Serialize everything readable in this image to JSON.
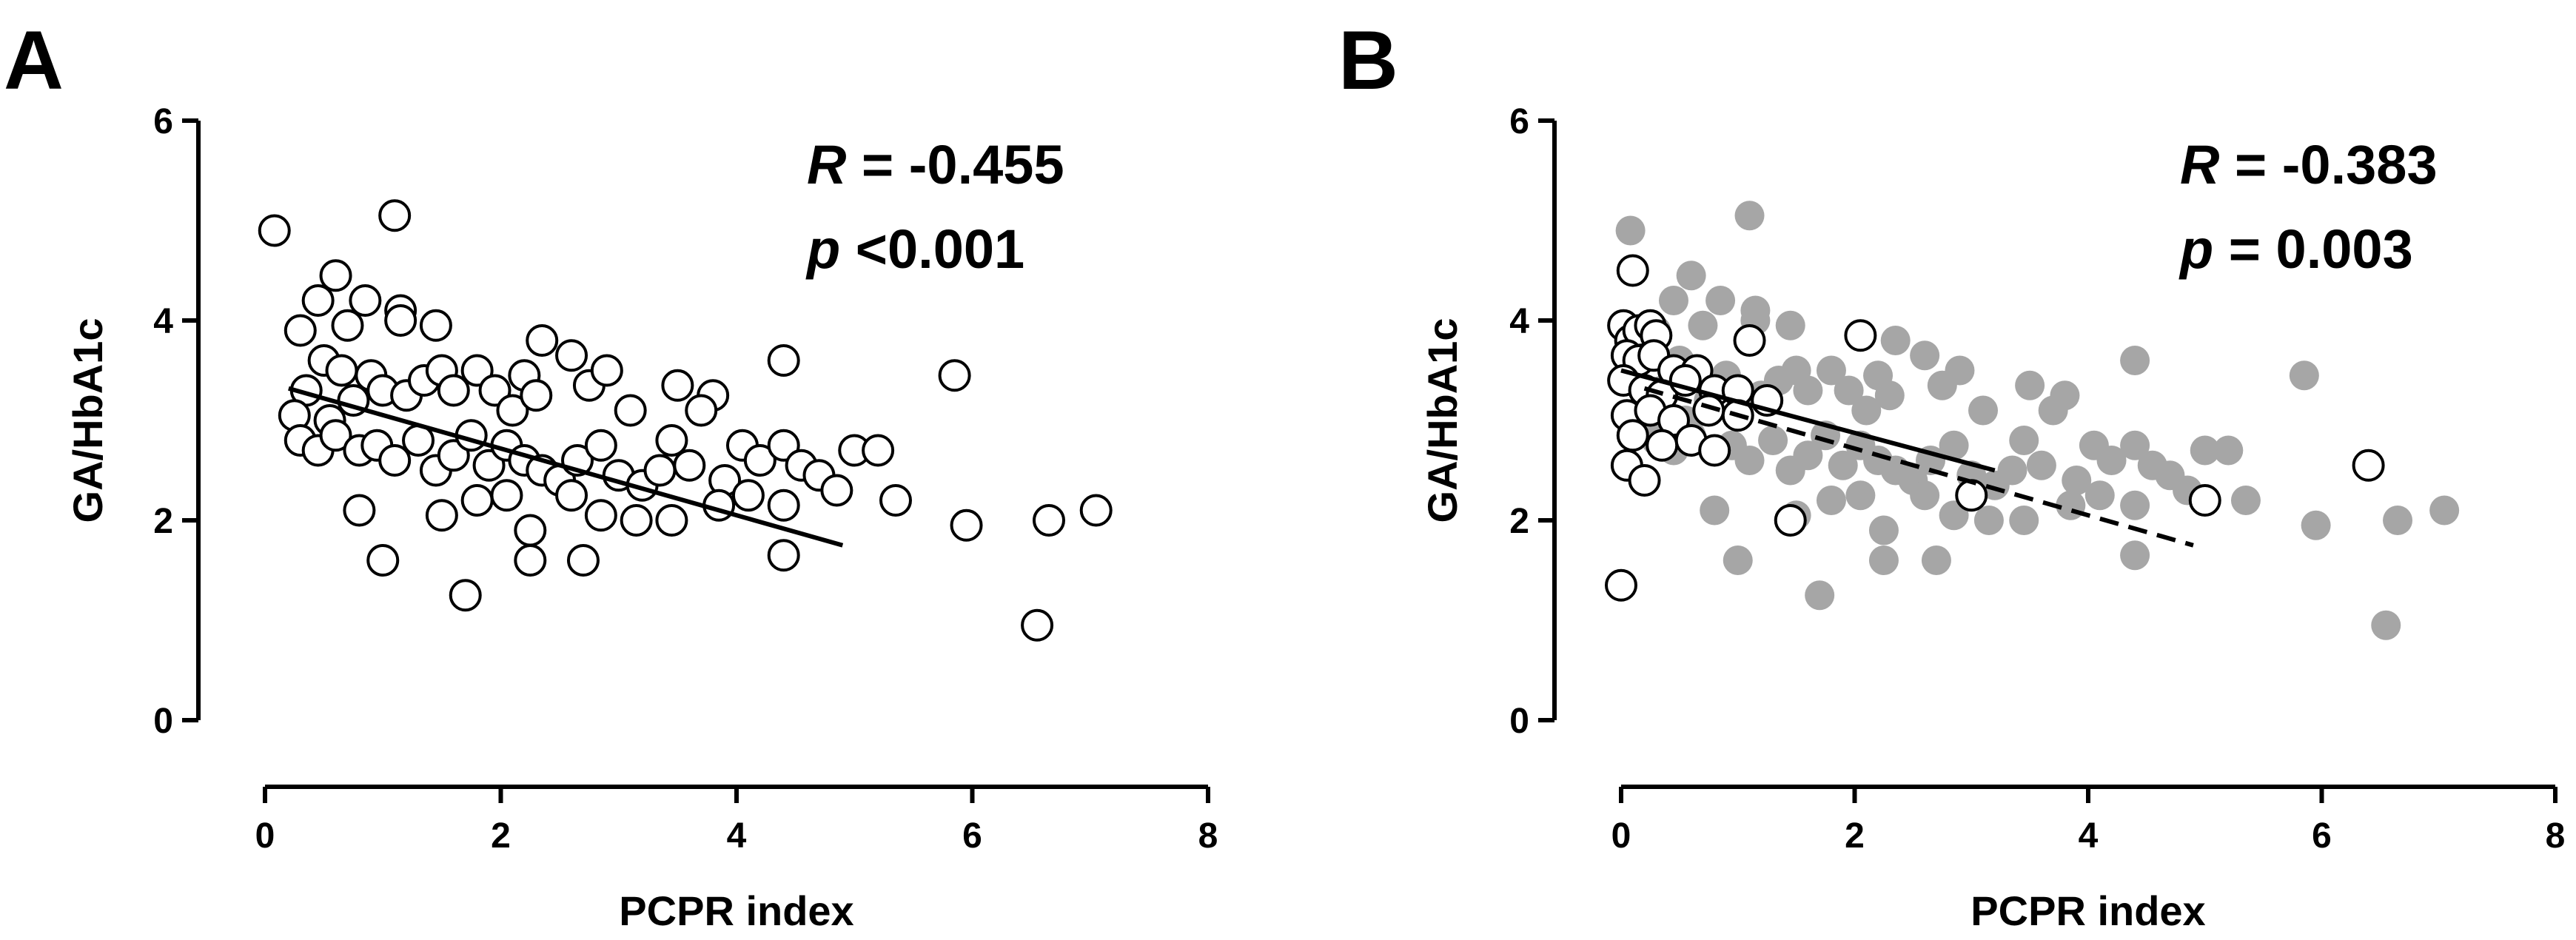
{
  "chart_data": [
    {
      "panel": "A",
      "type": "scatter",
      "xlabel": "PCPR index",
      "ylabel": "GA/HbA1c",
      "xlim": [
        0,
        8
      ],
      "ylim": [
        0,
        6
      ],
      "xticks": [
        "0",
        "2",
        "4",
        "6",
        "8"
      ],
      "yticks": [
        "0",
        "2",
        "4",
        "6"
      ],
      "annotation": {
        "r_symbol": "R",
        "r_value": " = -0.455",
        "p_symbol": "p",
        "p_value": " <0.001"
      },
      "series": [
        {
          "name": "all subjects",
          "marker": "open-circle",
          "points": [
            [
              0.08,
              4.9
            ],
            [
              1.1,
              5.05
            ],
            [
              0.6,
              4.45
            ],
            [
              0.45,
              4.2
            ],
            [
              0.85,
              4.2
            ],
            [
              1.15,
              4.1
            ],
            [
              0.3,
              3.9
            ],
            [
              0.7,
              3.95
            ],
            [
              1.45,
              3.95
            ],
            [
              1.15,
              4.0
            ],
            [
              0.5,
              3.6
            ],
            [
              0.65,
              3.5
            ],
            [
              0.35,
              3.3
            ],
            [
              0.25,
              3.05
            ],
            [
              0.55,
              3.0
            ],
            [
              0.75,
              3.2
            ],
            [
              0.9,
              3.45
            ],
            [
              1.0,
              3.3
            ],
            [
              1.2,
              3.25
            ],
            [
              1.35,
              3.4
            ],
            [
              1.5,
              3.5
            ],
            [
              1.6,
              3.3
            ],
            [
              1.8,
              3.5
            ],
            [
              1.95,
              3.3
            ],
            [
              2.1,
              3.1
            ],
            [
              2.2,
              3.45
            ],
            [
              2.3,
              3.25
            ],
            [
              2.35,
              3.8
            ],
            [
              2.6,
              3.65
            ],
            [
              2.75,
              3.35
            ],
            [
              2.9,
              3.5
            ],
            [
              3.1,
              3.1
            ],
            [
              3.5,
              3.35
            ],
            [
              3.8,
              3.25
            ],
            [
              3.7,
              3.1
            ],
            [
              4.4,
              3.6
            ],
            [
              5.85,
              3.45
            ],
            [
              0.3,
              2.8
            ],
            [
              0.45,
              2.7
            ],
            [
              0.6,
              2.85
            ],
            [
              0.8,
              2.7
            ],
            [
              0.95,
              2.75
            ],
            [
              1.1,
              2.6
            ],
            [
              1.3,
              2.8
            ],
            [
              1.45,
              2.5
            ],
            [
              1.6,
              2.65
            ],
            [
              1.75,
              2.85
            ],
            [
              1.9,
              2.55
            ],
            [
              2.05,
              2.75
            ],
            [
              2.2,
              2.6
            ],
            [
              2.35,
              2.5
            ],
            [
              2.5,
              2.4
            ],
            [
              2.65,
              2.6
            ],
            [
              2.85,
              2.75
            ],
            [
              3.0,
              2.45
            ],
            [
              3.2,
              2.35
            ],
            [
              3.35,
              2.5
            ],
            [
              3.45,
              2.8
            ],
            [
              3.6,
              2.55
            ],
            [
              3.9,
              2.4
            ],
            [
              4.05,
              2.75
            ],
            [
              4.2,
              2.6
            ],
            [
              4.4,
              2.75
            ],
            [
              4.55,
              2.55
            ],
            [
              4.7,
              2.45
            ],
            [
              4.85,
              2.3
            ],
            [
              5.0,
              2.7
            ],
            [
              5.2,
              2.7
            ],
            [
              5.35,
              2.2
            ],
            [
              0.8,
              2.1
            ],
            [
              1.5,
              2.05
            ],
            [
              1.8,
              2.2
            ],
            [
              2.05,
              2.25
            ],
            [
              2.25,
              1.9
            ],
            [
              2.6,
              2.25
            ],
            [
              2.85,
              2.05
            ],
            [
              3.15,
              2.0
            ],
            [
              3.45,
              2.0
            ],
            [
              3.85,
              2.15
            ],
            [
              4.1,
              2.25
            ],
            [
              4.4,
              2.15
            ],
            [
              1.0,
              1.6
            ],
            [
              1.7,
              1.25
            ],
            [
              2.25,
              1.6
            ],
            [
              2.7,
              1.6
            ],
            [
              4.4,
              1.65
            ],
            [
              5.95,
              1.95
            ],
            [
              6.65,
              2.0
            ],
            [
              7.05,
              2.1
            ],
            [
              6.55,
              0.95
            ]
          ]
        }
      ],
      "fit_lines": [
        {
          "name": "regression (all)",
          "style": "solid",
          "x": [
            0.2,
            4.9
          ],
          "y": [
            3.32,
            1.75
          ]
        }
      ]
    },
    {
      "panel": "B",
      "type": "scatter",
      "xlabel": "PCPR index",
      "ylabel": "GA/HbA1c",
      "xlim": [
        0,
        8
      ],
      "ylim": [
        0,
        6
      ],
      "xticks": [
        "0",
        "2",
        "4",
        "6",
        "8"
      ],
      "yticks": [
        "0",
        "2",
        "4",
        "6"
      ],
      "annotation": {
        "r_symbol": "R",
        "r_value": " = -0.383",
        "p_symbol": "p",
        "p_value": " = 0.003"
      },
      "series": [
        {
          "name": "all subjects (background)",
          "marker": "filled-circle",
          "color": "#a6a6a6",
          "points": [
            [
              0.08,
              4.9
            ],
            [
              1.1,
              5.05
            ],
            [
              0.6,
              4.45
            ],
            [
              0.45,
              4.2
            ],
            [
              0.85,
              4.2
            ],
            [
              1.15,
              4.1
            ],
            [
              0.3,
              3.9
            ],
            [
              0.7,
              3.95
            ],
            [
              1.45,
              3.95
            ],
            [
              1.15,
              4.0
            ],
            [
              0.5,
              3.6
            ],
            [
              0.65,
              3.5
            ],
            [
              0.35,
              3.3
            ],
            [
              0.25,
              3.05
            ],
            [
              0.55,
              3.0
            ],
            [
              0.75,
              3.2
            ],
            [
              0.9,
              3.45
            ],
            [
              1.0,
              3.3
            ],
            [
              1.2,
              3.25
            ],
            [
              1.35,
              3.4
            ],
            [
              1.5,
              3.5
            ],
            [
              1.6,
              3.3
            ],
            [
              1.8,
              3.5
            ],
            [
              1.95,
              3.3
            ],
            [
              2.1,
              3.1
            ],
            [
              2.2,
              3.45
            ],
            [
              2.3,
              3.25
            ],
            [
              2.35,
              3.8
            ],
            [
              2.6,
              3.65
            ],
            [
              2.75,
              3.35
            ],
            [
              2.9,
              3.5
            ],
            [
              3.1,
              3.1
            ],
            [
              3.5,
              3.35
            ],
            [
              3.8,
              3.25
            ],
            [
              3.7,
              3.1
            ],
            [
              4.4,
              3.6
            ],
            [
              5.85,
              3.45
            ],
            [
              0.3,
              2.8
            ],
            [
              0.45,
              2.7
            ],
            [
              0.6,
              2.85
            ],
            [
              0.8,
              2.7
            ],
            [
              0.95,
              2.75
            ],
            [
              1.1,
              2.6
            ],
            [
              1.3,
              2.8
            ],
            [
              1.45,
              2.5
            ],
            [
              1.6,
              2.65
            ],
            [
              1.75,
              2.85
            ],
            [
              1.9,
              2.55
            ],
            [
              2.05,
              2.75
            ],
            [
              2.2,
              2.6
            ],
            [
              2.35,
              2.5
            ],
            [
              2.5,
              2.4
            ],
            [
              2.65,
              2.6
            ],
            [
              2.85,
              2.75
            ],
            [
              3.0,
              2.45
            ],
            [
              3.2,
              2.35
            ],
            [
              3.35,
              2.5
            ],
            [
              3.45,
              2.8
            ],
            [
              3.6,
              2.55
            ],
            [
              3.9,
              2.4
            ],
            [
              4.05,
              2.75
            ],
            [
              4.2,
              2.6
            ],
            [
              4.4,
              2.75
            ],
            [
              4.55,
              2.55
            ],
            [
              4.7,
              2.45
            ],
            [
              4.85,
              2.3
            ],
            [
              5.0,
              2.7
            ],
            [
              5.2,
              2.7
            ],
            [
              5.35,
              2.2
            ],
            [
              0.8,
              2.1
            ],
            [
              1.5,
              2.05
            ],
            [
              1.8,
              2.2
            ],
            [
              2.05,
              2.25
            ],
            [
              2.25,
              1.9
            ],
            [
              2.6,
              2.25
            ],
            [
              2.85,
              2.05
            ],
            [
              3.15,
              2.0
            ],
            [
              3.45,
              2.0
            ],
            [
              3.85,
              2.15
            ],
            [
              4.1,
              2.25
            ],
            [
              4.4,
              2.15
            ],
            [
              1.0,
              1.6
            ],
            [
              1.7,
              1.25
            ],
            [
              2.25,
              1.6
            ],
            [
              2.7,
              1.6
            ],
            [
              4.4,
              1.65
            ],
            [
              5.95,
              1.95
            ],
            [
              6.65,
              2.0
            ],
            [
              7.05,
              2.1
            ],
            [
              6.55,
              0.95
            ]
          ]
        },
        {
          "name": "subgroup",
          "marker": "open-circle",
          "points": [
            [
              0.02,
              3.95
            ],
            [
              0.08,
              3.8
            ],
            [
              0.15,
              3.9
            ],
            [
              0.25,
              3.95
            ],
            [
              0.3,
              3.85
            ],
            [
              0.05,
              3.65
            ],
            [
              0.15,
              3.6
            ],
            [
              0.28,
              3.65
            ],
            [
              0.45,
              3.5
            ],
            [
              0.65,
              3.5
            ],
            [
              0.02,
              3.4
            ],
            [
              0.2,
              3.3
            ],
            [
              0.35,
              3.25
            ],
            [
              0.55,
              3.4
            ],
            [
              0.8,
              3.3
            ],
            [
              1.0,
              3.3
            ],
            [
              1.25,
              3.2
            ],
            [
              0.05,
              3.05
            ],
            [
              0.25,
              3.1
            ],
            [
              0.45,
              3.0
            ],
            [
              0.75,
              3.1
            ],
            [
              1.0,
              3.05
            ],
            [
              0.1,
              2.85
            ],
            [
              0.35,
              2.75
            ],
            [
              0.6,
              2.8
            ],
            [
              0.8,
              2.7
            ],
            [
              0.05,
              2.55
            ],
            [
              0.2,
              2.4
            ],
            [
              0.1,
              4.5
            ],
            [
              1.1,
              3.8
            ],
            [
              2.05,
              3.85
            ],
            [
              3.0,
              2.25
            ],
            [
              1.45,
              2.0
            ],
            [
              5.0,
              2.2
            ],
            [
              6.4,
              2.55
            ],
            [
              0.0,
              1.35
            ]
          ]
        }
      ],
      "fit_lines": [
        {
          "name": "regression (subgroup)",
          "style": "solid",
          "x": [
            0.0,
            3.2
          ],
          "y": [
            3.5,
            2.5
          ]
        },
        {
          "name": "regression (all)",
          "style": "dashed",
          "x": [
            0.2,
            4.9
          ],
          "y": [
            3.32,
            1.75
          ]
        }
      ]
    }
  ],
  "panels": [
    {
      "label": "A"
    },
    {
      "label": "B"
    }
  ]
}
